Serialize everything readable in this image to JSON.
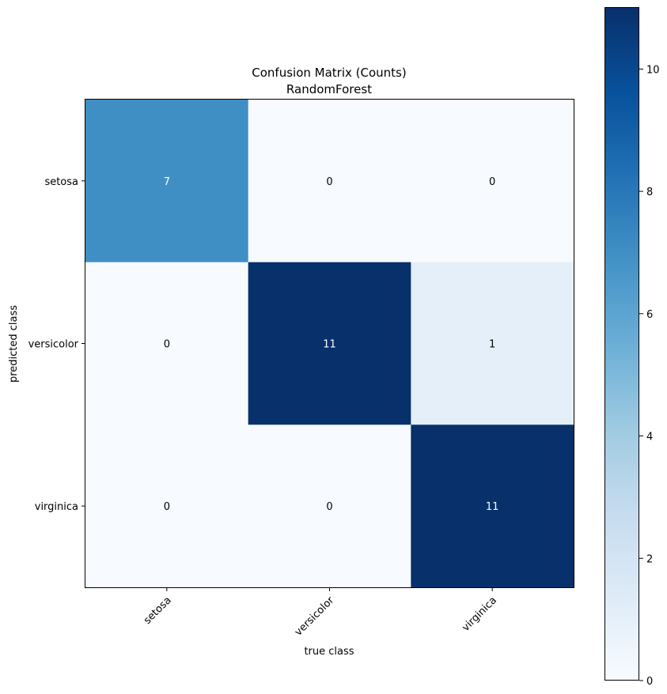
{
  "chart_data": {
    "type": "heatmap",
    "title": "Confusion Matrix (Counts)",
    "subtitle": "RandomForest",
    "xlabel": "true class",
    "ylabel": "predicted class",
    "x_categories": [
      "setosa",
      "versicolor",
      "virginica"
    ],
    "y_categories": [
      "setosa",
      "versicolor",
      "virginica"
    ],
    "matrix": [
      [
        7,
        0,
        0
      ],
      [
        0,
        11,
        1
      ],
      [
        0,
        0,
        11
      ]
    ],
    "colormap": "Blues",
    "colorbar": {
      "range": [
        0,
        11
      ],
      "ticks": [
        0,
        2,
        4,
        6,
        8,
        10
      ]
    }
  }
}
